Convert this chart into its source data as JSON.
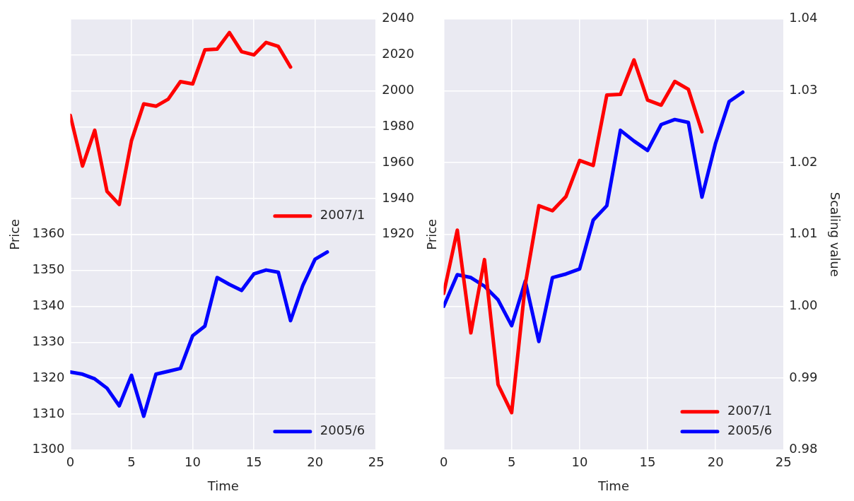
{
  "chart_data": [
    {
      "type": "line",
      "xlabel": "Time",
      "ylabel": "Price",
      "xlim": [
        0,
        25
      ],
      "xticks": [
        0,
        5,
        10,
        15,
        20,
        25
      ],
      "ylim": [
        1300,
        1420
      ],
      "yticks": [
        1300,
        1310,
        1320,
        1330,
        1340,
        1350,
        1360
      ],
      "y2lim": [
        1800,
        2040
      ],
      "y2ticks": [
        1920,
        1940,
        1960,
        1980,
        2000,
        2020,
        2040
      ],
      "grid": true,
      "legend": "bottom right",
      "series": [
        {
          "name": "2007/1",
          "color": "#ff0000",
          "axis": "y2",
          "x": [
            0,
            1,
            2,
            3,
            4,
            5,
            6,
            7,
            8,
            9,
            10,
            11,
            12,
            13,
            14,
            15,
            16,
            17,
            18
          ],
          "values": [
            1986.3,
            1958.1,
            1978.0,
            1944.0,
            1936.7,
            1972.2,
            1992.7,
            1991.4,
            1995.3,
            2005.1,
            2003.8,
            2022.8,
            2023.2,
            2032.4,
            2021.8,
            2020.0,
            2026.9,
            2024.7,
            2013.2
          ]
        },
        {
          "name": "2005/6",
          "color": "#0000ff",
          "x": [
            0,
            1,
            2,
            3,
            4,
            5,
            6,
            7,
            8,
            9,
            10,
            11,
            12,
            13,
            14,
            15,
            16,
            17,
            18,
            19,
            20,
            21
          ],
          "values": [
            1321.7,
            1321.1,
            1319.8,
            1317.2,
            1312.3,
            1320.8,
            1309.4,
            1321.1,
            1321.9,
            1322.7,
            1331.8,
            1334.5,
            1348.0,
            1346.1,
            1344.4,
            1349.0,
            1350.1,
            1349.5,
            1336.0,
            1345.8,
            1353.1,
            1355.1
          ]
        }
      ]
    },
    {
      "type": "line",
      "xlabel": "Time",
      "ylabel": "Price",
      "y2label": "Scaling value",
      "xlim": [
        0,
        25
      ],
      "xticks": [
        0,
        5,
        10,
        15,
        20,
        25
      ],
      "y2lim": [
        0.98,
        1.04
      ],
      "y2ticks": [
        {
          "value": 0.98,
          "label": "0.98"
        },
        {
          "value": 0.99,
          "label": "0.99"
        },
        {
          "value": 1.0,
          "label": "1.00"
        },
        {
          "value": 1.01,
          "label": "1.01"
        },
        {
          "value": 1.02,
          "label": "1.02"
        },
        {
          "value": 1.03,
          "label": "1.03"
        },
        {
          "value": 1.04,
          "label": "1.04"
        }
      ],
      "grid": true,
      "legend": "bottom right",
      "series": [
        {
          "name": "2007/1",
          "color": "#ff0000",
          "axis": "y2",
          "x": [
            0,
            1,
            2,
            3,
            4,
            5,
            6,
            7,
            8,
            9,
            10,
            11,
            12,
            13,
            14,
            15,
            16,
            17,
            18,
            19
          ],
          "values": [
            1.0018,
            1.0106,
            0.9963,
            1.0065,
            0.9891,
            0.9852,
            1.003,
            1.014,
            1.0133,
            1.0153,
            1.0203,
            1.0196,
            1.0294,
            1.0295,
            1.0343,
            1.0287,
            1.028,
            1.0313,
            1.0302,
            1.0243
          ]
        },
        {
          "name": "2005/6",
          "color": "#0000ff",
          "axis": "y2",
          "x": [
            0,
            1,
            2,
            3,
            4,
            5,
            6,
            7,
            8,
            9,
            10,
            11,
            12,
            13,
            14,
            15,
            16,
            17,
            18,
            19,
            20,
            21,
            22
          ],
          "values": [
            1.0,
            1.0044,
            1.004,
            1.0028,
            1.0009,
            0.9973,
            1.0035,
            0.9951,
            1.004,
            1.0045,
            1.0052,
            1.012,
            1.014,
            1.0245,
            1.023,
            1.0217,
            1.0253,
            1.026,
            1.0256,
            1.0152,
            1.0227,
            1.0285,
            1.0298
          ]
        }
      ]
    }
  ]
}
